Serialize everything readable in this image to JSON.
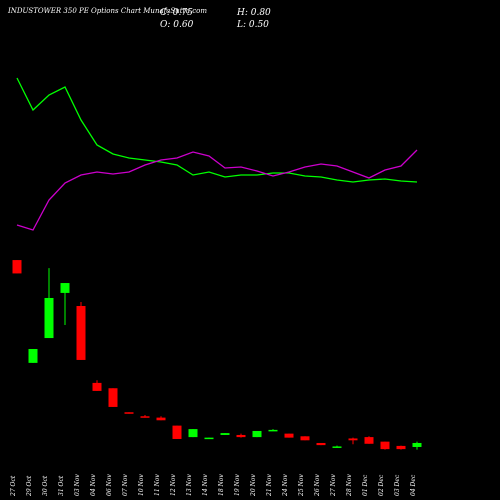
{
  "chart_data": {
    "type": "candlestick",
    "title": "INDUSTOWER 350 PE Options Chart MunafaSutra.com",
    "info": {
      "close": "C: 0.75",
      "high": "H: 0.80",
      "open": "O: 0.60",
      "low": "L: 0.50"
    },
    "x": [
      "27 Oct",
      "29 Oct",
      "30 Oct",
      "31 Oct",
      "03 Nov",
      "04 Nov",
      "06 Nov",
      "07 Nov",
      "10 Nov",
      "11 Nov",
      "12 Nov",
      "13 Nov",
      "14 Nov",
      "18 Nov",
      "19 Nov",
      "20 Nov",
      "21 Nov",
      "24 Nov",
      "25 Nov",
      "26 Nov",
      "27 Nov",
      "28 Nov",
      "01 Dec",
      "02 Dec",
      "03 Dec",
      "04 Dec"
    ],
    "open": [
      7.6,
      3.75,
      4.68,
      6.37,
      5.88,
      3.0,
      2.8,
      1.9,
      1.75,
      1.7,
      1.4,
      0.97,
      0.9,
      1.05,
      1.05,
      0.97,
      1.2,
      1.1,
      1.0,
      0.75,
      0.6,
      0.92,
      0.97,
      0.8,
      0.64,
      0.6
    ],
    "high": [
      7.6,
      4.27,
      7.3,
      6.74,
      6.03,
      3.1,
      2.8,
      1.9,
      1.8,
      1.75,
      1.4,
      1.27,
      0.95,
      1.12,
      1.1,
      1.2,
      1.27,
      1.1,
      1.0,
      0.75,
      0.65,
      0.95,
      1.0,
      0.8,
      0.65,
      0.8
    ],
    "low": [
      7.1,
      3.75,
      4.68,
      5.17,
      3.86,
      2.7,
      2.1,
      1.85,
      1.7,
      1.6,
      0.9,
      0.97,
      0.9,
      1.05,
      0.95,
      0.97,
      1.2,
      0.95,
      0.85,
      0.67,
      0.58,
      0.7,
      0.72,
      0.5,
      0.5,
      0.5
    ],
    "close": [
      7.1,
      4.27,
      6.18,
      6.74,
      3.86,
      2.7,
      2.1,
      1.85,
      1.7,
      1.6,
      0.9,
      1.27,
      0.95,
      1.12,
      0.97,
      1.2,
      1.24,
      0.95,
      0.85,
      0.67,
      0.62,
      0.85,
      0.72,
      0.52,
      0.52,
      0.75
    ],
    "ylim": [
      0,
      15
    ],
    "up_color": "#00ff00",
    "down_color": "#ff0000",
    "overlay_ylim": [
      0,
      190
    ],
    "overlays": [
      {
        "color": "#00ff00",
        "values": [
          172,
          140,
          155,
          163,
          130,
          105,
          96,
          92,
          90,
          88,
          85,
          75,
          78,
          73,
          75,
          75,
          77,
          77,
          74,
          73,
          70,
          68,
          70,
          71,
          69,
          68
        ]
      },
      {
        "color": "#cc00cc",
        "values": [
          25,
          20,
          50,
          67,
          75,
          78,
          76,
          78,
          85,
          90,
          92,
          98,
          94,
          82,
          83,
          79,
          74,
          78,
          83,
          86,
          84,
          78,
          72,
          80,
          84,
          100
        ]
      }
    ]
  }
}
